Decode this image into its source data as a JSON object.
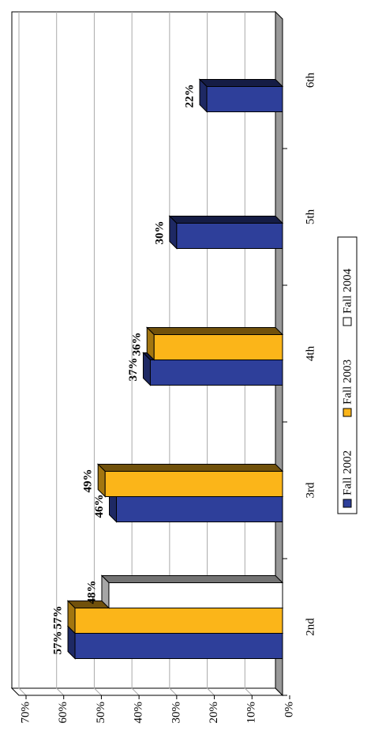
{
  "chart_data": {
    "type": "bar",
    "categories": [
      "2nd",
      "3rd",
      "4th",
      "5th",
      "6th"
    ],
    "series": [
      {
        "name": "Fall 2002",
        "color": "#2e3f9a",
        "values": [
          57,
          46,
          37,
          30,
          22
        ],
        "value_labels": [
          "57%",
          "46%",
          "37%",
          "30%",
          "22%"
        ]
      },
      {
        "name": "Fall 2003",
        "color": "#fbb519",
        "values": [
          57,
          49,
          36,
          null,
          null
        ],
        "value_labels": [
          "57%",
          "49%",
          "36%",
          null,
          null
        ]
      },
      {
        "name": "Fall 2004",
        "color": "#ffffff",
        "values": [
          48,
          null,
          null,
          null,
          null
        ],
        "value_labels": [
          "48%",
          null,
          null,
          null,
          null
        ]
      }
    ],
    "ylim": [
      0,
      70
    ],
    "yticks": [
      {
        "value": 0,
        "label": "0%"
      },
      {
        "value": 10,
        "label": "10%"
      },
      {
        "value": 20,
        "label": "20%"
      },
      {
        "value": 30,
        "label": "30%"
      },
      {
        "value": 40,
        "label": "40%"
      },
      {
        "value": 50,
        "label": "50%"
      },
      {
        "value": 60,
        "label": "60%"
      },
      {
        "value": 70,
        "label": "70%"
      }
    ],
    "grid": true,
    "legend": "bottom"
  }
}
